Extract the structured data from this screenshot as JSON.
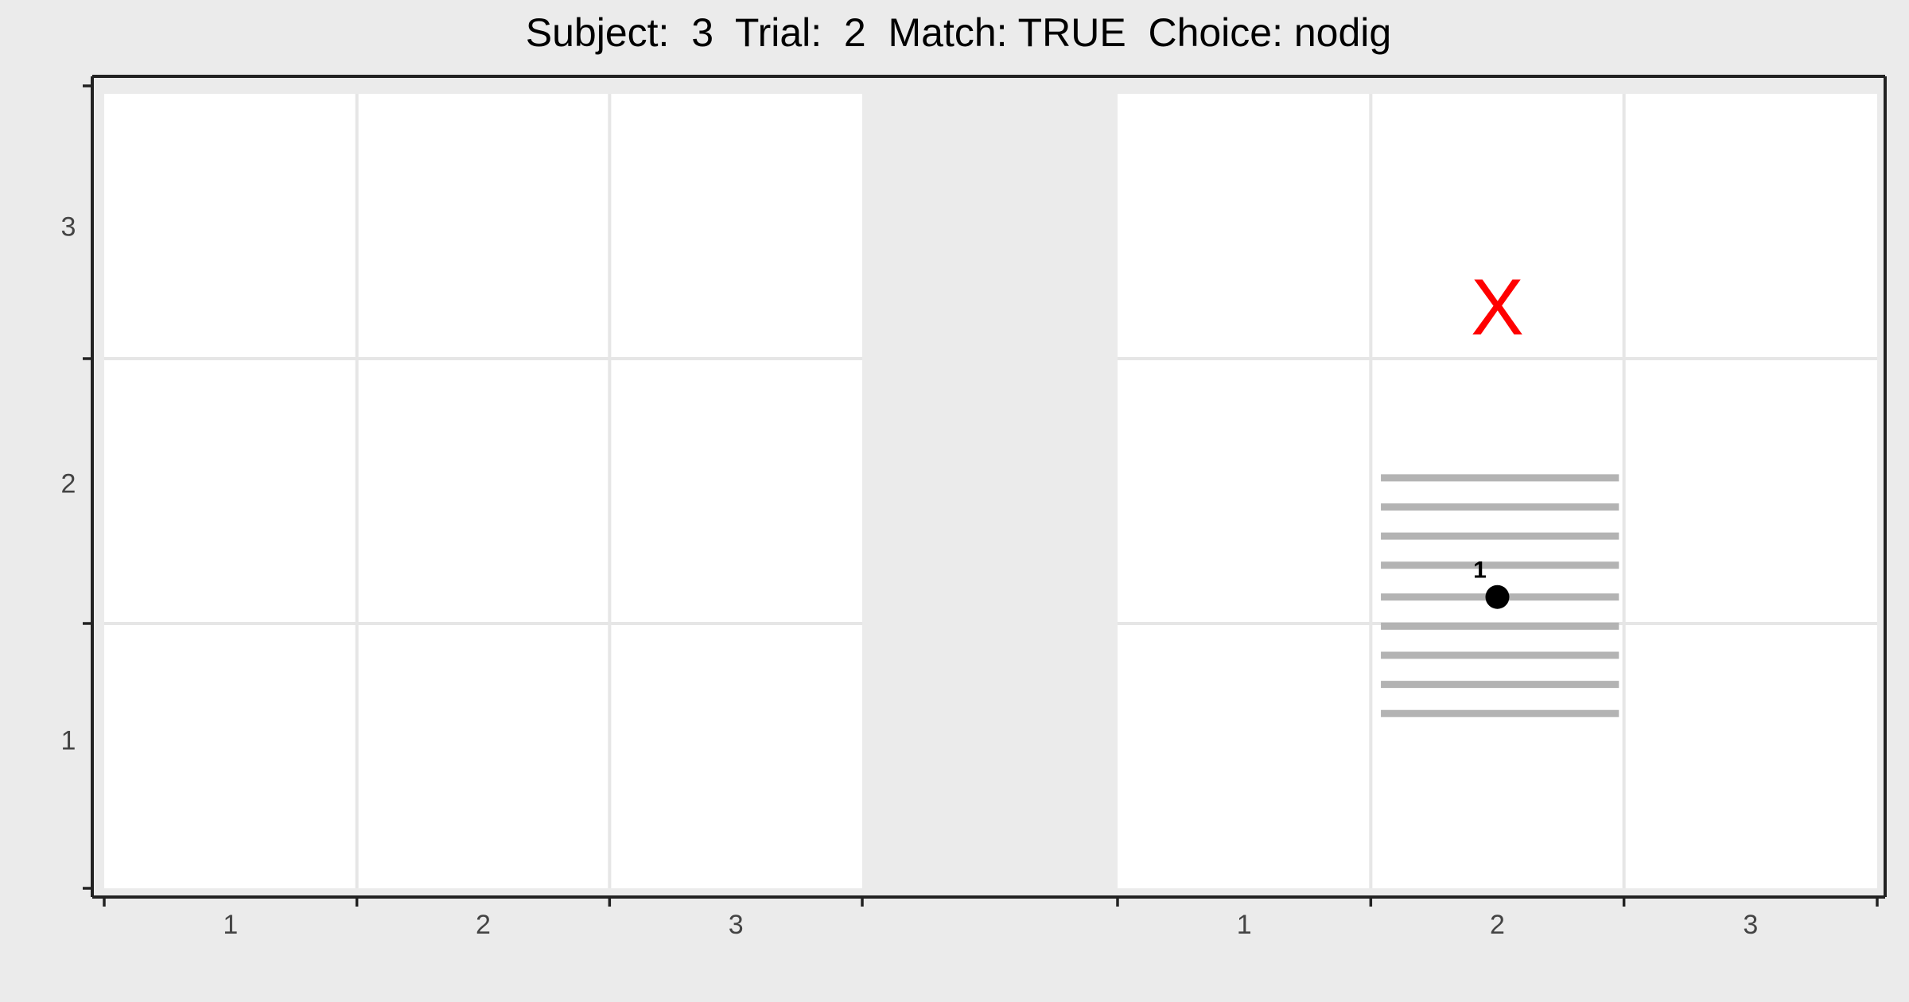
{
  "title": "Subject:  3  Trial:  2  Match: TRUE  Choice: nodig",
  "colors": {
    "background": "#ebebeb",
    "panel": "#ffffff",
    "grid": "#e6e6e6",
    "axis": "#222222",
    "stripes": "#b3b3b3",
    "target_mark": "#ff0000",
    "point": "#000000"
  },
  "chart_data": {
    "type": "scatter",
    "facets": [
      {
        "name": "left",
        "x_ticks": [
          "1",
          "2",
          "3"
        ],
        "y_ticks": [
          "1",
          "2",
          "3"
        ],
        "xlim": [
          0.5,
          3.5
        ],
        "ylim": [
          0.5,
          3.5
        ],
        "grid": true,
        "stripes": null,
        "markers": [],
        "points": []
      },
      {
        "name": "right",
        "x_ticks": [
          "1",
          "2",
          "3"
        ],
        "y_ticks": [
          "1",
          "2",
          "3"
        ],
        "xlim": [
          0.5,
          3.5
        ],
        "ylim": [
          0.5,
          3.5
        ],
        "grid": true,
        "stripes": {
          "x_range": [
            1.54,
            2.48
          ],
          "y_values": [
            2.05,
            1.94,
            1.83,
            1.72,
            1.6,
            1.49,
            1.38,
            1.27,
            1.16
          ]
        },
        "markers": [
          {
            "label": "X",
            "x": 2,
            "y": 2.7
          }
        ],
        "points": [
          {
            "label": "1",
            "x": 2.0,
            "y": 1.6
          }
        ]
      }
    ]
  }
}
